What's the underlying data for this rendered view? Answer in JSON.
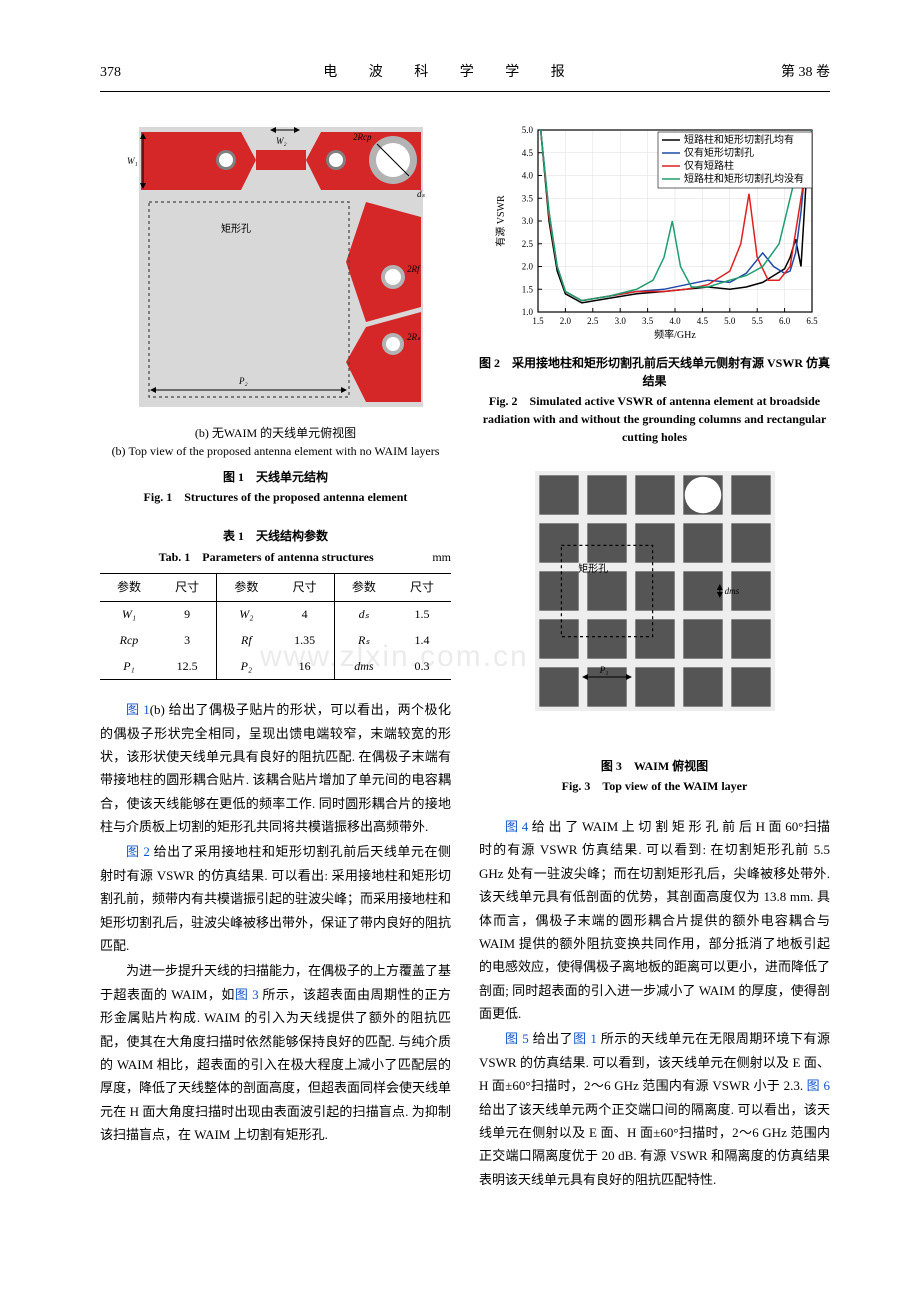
{
  "header": {
    "page_num": "378",
    "journal": "电 波 科 学 学 报",
    "volume": "第 38 卷"
  },
  "fig1": {
    "sub_label_cn": "(b) 无WAIM 的天线单元俯视图",
    "sub_label_en": "(b) Top view of the proposed antenna element with no WAIM layers",
    "caption_cn": "图 1　天线单元结构",
    "caption_en": "Fig. 1　Structures of the proposed antenna element",
    "labels": {
      "W1": "W₁",
      "W2": "W₂",
      "Rcp": "2Rcp",
      "ds": "dₛ",
      "Rf": "2Rf",
      "Rs": "2Rₛ",
      "P2": "P₂",
      "rect_hole": "矩形孔"
    },
    "colors": {
      "dipole": "#d62728",
      "circle_pad": "#b3b3b3",
      "inner_circle": "#808080",
      "border": "#8a8a8a"
    }
  },
  "table1": {
    "title_cn": "表 1　天线结构参数",
    "title_en": "Tab. 1　Parameters of antenna structures",
    "unit": "mm",
    "headers": [
      "参数",
      "尺寸",
      "参数",
      "尺寸",
      "参数",
      "尺寸"
    ],
    "rows": [
      [
        "W₁",
        "9",
        "W₂",
        "4",
        "dₛ",
        "1.5"
      ],
      [
        "Rcp",
        "3",
        "Rf",
        "1.35",
        "Rₛ",
        "1.4"
      ],
      [
        "P₁",
        "12.5",
        "P₂",
        "16",
        "dms",
        "0.3"
      ]
    ]
  },
  "body_left": {
    "p1_link": "图 1",
    "p1": "(b) 给出了偶极子贴片的形状，可以看出，两个极化的偶极子形状完全相同，呈现出馈电端较窄，末端较宽的形状，该形状使天线单元具有良好的阻抗匹配. 在偶极子末端有带接地柱的圆形耦合贴片. 该耦合贴片增加了单元间的电容耦合，使该天线能够在更低的频率工作. 同时圆形耦合片的接地柱与介质板上切割的矩形孔共同将共模谐振移出高频带外.",
    "p2_link": "图 2",
    "p2": " 给出了采用接地柱和矩形切割孔前后天线单元在侧射时有源 VSWR 的仿真结果. 可以看出: 采用接地柱和矩形切割孔前，频带内有共模谐振引起的驻波尖峰；而采用接地柱和矩形切割孔后，驻波尖峰被移出带外，保证了带内良好的阻抗匹配.",
    "p3_a": "为进一步提升天线的扫描能力，在偶极子的上方覆盖了基于超表面的 WAIM，如",
    "p3_link": "图 3",
    "p3_b": " 所示，该超表面由周期性的正方形金属贴片构成. WAIM 的引入为天线提供了额外的阻抗匹配，使其在大角度扫描时依然能够保持良好的匹配. 与纯介质的 WAIM 相比，超表面的引入在极大程度上减小了匹配层的厚度，降低了天线整体的剖面高度，但超表面同样会使天线单元在 H 面大角度扫描时出现由表面波引起的扫描盲点. 为抑制该扫描盲点，在 WAIM 上切割有矩形孔."
  },
  "fig2": {
    "caption_cn": "图 2　采用接地柱和矩形切割孔前后天线单元侧射有源 VSWR 仿真结果",
    "caption_en": "Fig. 2　Simulated active VSWR of antenna element at broadside radiation with and without the grounding columns and rectangular cutting holes",
    "xlabel": "频率/GHz",
    "ylabel": "有源 VSWR",
    "xlim": [
      1.5,
      6.5
    ],
    "ylim": [
      1.0,
      5.0
    ],
    "xticks": [
      1.5,
      2.0,
      2.5,
      3.0,
      3.5,
      4.0,
      4.5,
      5.0,
      5.5,
      6.0,
      6.5
    ],
    "yticks": [
      1.0,
      1.5,
      2.0,
      2.5,
      3.0,
      3.5,
      4.0,
      4.5,
      5.0
    ],
    "grid_color": "#dddddd",
    "frame_color": "#000000",
    "legend": [
      {
        "label": "短路柱和矩形切割孔均有",
        "color": "#000000"
      },
      {
        "label": "仅有矩形切割孔",
        "color": "#1f4aa8"
      },
      {
        "label": "仅有短路柱",
        "color": "#e02020"
      },
      {
        "label": "短路柱和矩形切割孔均没有",
        "color": "#1e9e6f"
      }
    ],
    "series": {
      "both": {
        "color": "#000000",
        "x": [
          1.55,
          1.7,
          1.85,
          2.0,
          2.3,
          2.8,
          3.3,
          3.8,
          4.2,
          4.6,
          5.0,
          5.3,
          5.6,
          5.8,
          6.0,
          6.1,
          6.2,
          6.3,
          6.4,
          6.5
        ],
        "y": [
          5.0,
          3.0,
          1.9,
          1.4,
          1.2,
          1.3,
          1.4,
          1.45,
          1.5,
          1.55,
          1.5,
          1.55,
          1.65,
          1.8,
          1.95,
          2.2,
          2.6,
          2.0,
          4.0,
          5.0
        ]
      },
      "rect_only": {
        "color": "#1f4aa8",
        "x": [
          1.55,
          1.7,
          1.85,
          2.0,
          2.3,
          2.8,
          3.3,
          3.8,
          4.2,
          4.6,
          5.0,
          5.3,
          5.6,
          5.8,
          6.0,
          6.1,
          6.2,
          6.3,
          6.4,
          6.5
        ],
        "y": [
          5.0,
          3.2,
          2.0,
          1.45,
          1.25,
          1.35,
          1.45,
          1.5,
          1.6,
          1.7,
          1.65,
          1.85,
          2.3,
          2.0,
          1.85,
          1.9,
          2.3,
          3.2,
          4.5,
          5.0
        ]
      },
      "short_only": {
        "color": "#e02020",
        "x": [
          1.55,
          1.7,
          1.85,
          2.0,
          2.3,
          2.8,
          3.3,
          3.8,
          4.2,
          4.6,
          5.0,
          5.2,
          5.35,
          5.5,
          5.7,
          5.9,
          6.1,
          6.3,
          6.5
        ],
        "y": [
          5.0,
          3.1,
          2.0,
          1.45,
          1.25,
          1.35,
          1.45,
          1.45,
          1.5,
          1.6,
          1.9,
          2.5,
          3.6,
          2.2,
          1.7,
          1.7,
          2.0,
          3.5,
          5.0
        ]
      },
      "none": {
        "color": "#1e9e6f",
        "x": [
          1.55,
          1.7,
          1.85,
          2.0,
          2.3,
          2.8,
          3.3,
          3.6,
          3.8,
          3.95,
          4.1,
          4.3,
          4.6,
          5.0,
          5.3,
          5.6,
          5.9,
          6.2,
          6.5
        ],
        "y": [
          5.0,
          3.2,
          2.0,
          1.45,
          1.25,
          1.35,
          1.5,
          1.7,
          2.2,
          3.0,
          2.0,
          1.55,
          1.55,
          1.7,
          1.8,
          2.0,
          2.5,
          4.0,
          5.0
        ]
      }
    }
  },
  "fig3": {
    "caption_cn": "图 3　WAIM 俯视图",
    "caption_en": "Fig. 3　Top view of the WAIM layer",
    "labels": {
      "rect_hole": "矩形孔",
      "P1": "P₁",
      "dms": "dms"
    },
    "grid": {
      "rows": 5,
      "cols": 5,
      "patch": 0.82,
      "bg": "#eeeeee",
      "patch_color": "#555555"
    },
    "hole": {
      "r": 3,
      "c": 4
    }
  },
  "body_right": {
    "p1_link": "图 4",
    "p1": " 给 出 了 WAIM 上 切 割 矩 形 孔 前 后 H 面 60°扫描时的有源 VSWR 仿真结果. 可以看到: 在切割矩形孔前 5.5 GHz 处有一驻波尖峰；而在切割矩形孔后，尖峰被移处带外. 该天线单元具有低剖面的优势，其剖面高度仅为 13.8 mm. 具体而言，偶极子末端的圆形耦合片提供的额外电容耦合与 WAIM 提供的额外阻抗变换共同作用，部分抵消了地板引起的电感效应，使得偶极子离地板的距离可以更小，进而降低了剖面; 同时超表面的引入进一步减小了 WAIM 的厚度，使得剖面更低.",
    "p2_link1": "图 5",
    "p2_a": " 给出了",
    "p2_link2": "图 1",
    "p2_b": " 所示的天线单元在无限周期环境下有源 VSWR 的仿真结果. 可以看到，该天线单元在侧射以及 E 面、H 面±60°扫描时，2～6 GHz 范围内有源 VSWR 小于 2.3. ",
    "p2_link3": "图 6",
    "p2_c": " 给出了该天线单元两个正交端口间的隔离度. 可以看出，该天线单元在侧射以及 E 面、H 面±60°扫描时，2～6 GHz 范围内正交端口隔离度优于 20 dB. 有源 VSWR 和隔离度的仿真结果表明该天线单元具有良好的阻抗匹配特性."
  },
  "watermark": "www.zlxin.com.cn"
}
